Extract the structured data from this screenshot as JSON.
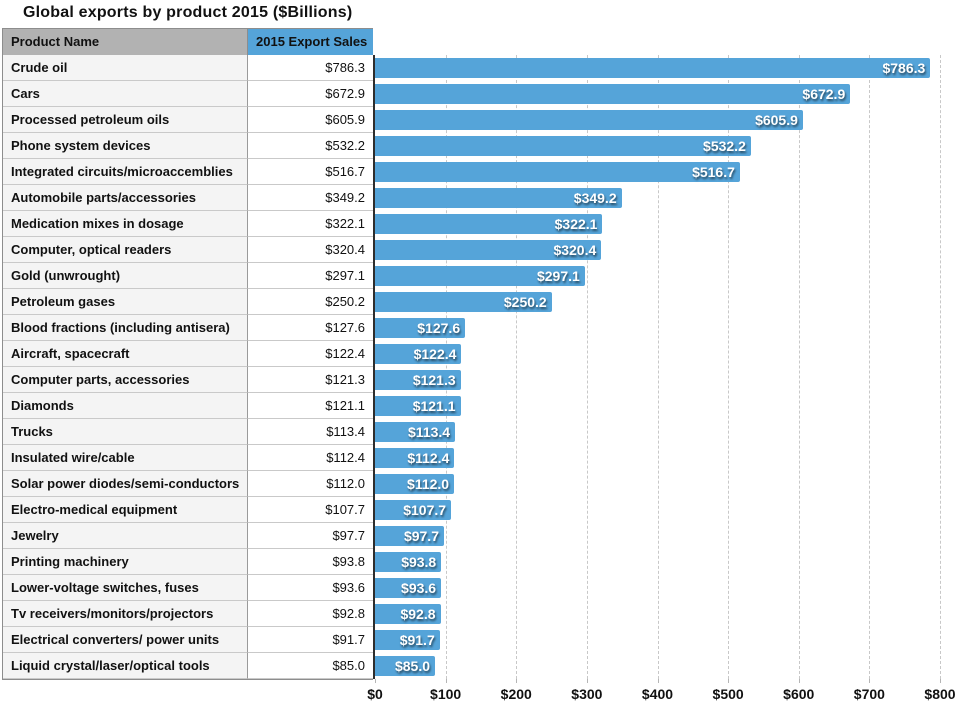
{
  "title": "Global exports by product 2015 ($Billions)",
  "table": {
    "columns": {
      "product": "Product Name",
      "sales": "2015 Export Sales"
    }
  },
  "chart_data": {
    "type": "bar",
    "orientation": "horizontal",
    "title": "Global exports by product 2015 ($Billions)",
    "categories": [
      "Crude oil",
      "Cars",
      "Processed petroleum oils",
      "Phone system devices",
      "Integrated circuits/microaccemblies",
      "Automobile parts/accessories",
      "Medication mixes in dosage",
      "Computer, optical readers",
      "Gold (unwrought)",
      "Petroleum gases",
      "Blood fractions (including antisera)",
      "Aircraft, spacecraft",
      "Computer parts, accessories",
      "Diamonds",
      "Trucks",
      "Insulated wire/cable",
      "Solar power diodes/semi-conductors",
      "Electro-medical equipment",
      "Jewelry",
      "Printing machinery",
      "Lower-voltage switches, fuses",
      "Tv receivers/monitors/projectors",
      "Electrical converters/ power units",
      "Liquid crystal/laser/optical tools"
    ],
    "values": [
      786.3,
      672.9,
      605.9,
      532.2,
      516.7,
      349.2,
      322.1,
      320.4,
      297.1,
      250.2,
      127.6,
      122.4,
      121.3,
      121.1,
      113.4,
      112.4,
      112.0,
      107.7,
      97.7,
      93.8,
      93.6,
      92.8,
      91.7,
      85.0
    ],
    "value_labels": [
      "$786.3",
      "$672.9",
      "$605.9",
      "$532.2",
      "$516.7",
      "$349.2",
      "$322.1",
      "$320.4",
      "$297.1",
      "$250.2",
      "$127.6",
      "$122.4",
      "$121.3",
      "$121.1",
      "$113.4",
      "$112.4",
      "$112.0",
      "$107.7",
      "$97.7",
      "$93.8",
      "$93.6",
      "$92.8",
      "$91.7",
      "$85.0"
    ],
    "xlabel": "",
    "ylabel": "",
    "xlim": [
      0,
      800
    ],
    "xticks": [
      0,
      100,
      200,
      300,
      400,
      500,
      600,
      700,
      800
    ],
    "xtick_labels": [
      "$0",
      "$100",
      "$200",
      "$300",
      "$400",
      "$500",
      "$600",
      "$700",
      "$800"
    ],
    "grid": "vertical-dashed",
    "legend": "none",
    "bar_label_position": "inside-end"
  },
  "colors": {
    "bar": "#55a4d9",
    "header_product_bg": "#b2b2b2",
    "header_sales_bg": "#55a4d9",
    "row_name_bg": "#f4f4f4",
    "row_value_bg": "#ffffff",
    "axis": "#2e2e2e",
    "gridline": "#c8c8c8",
    "bar_label_text": "#ffffff"
  }
}
